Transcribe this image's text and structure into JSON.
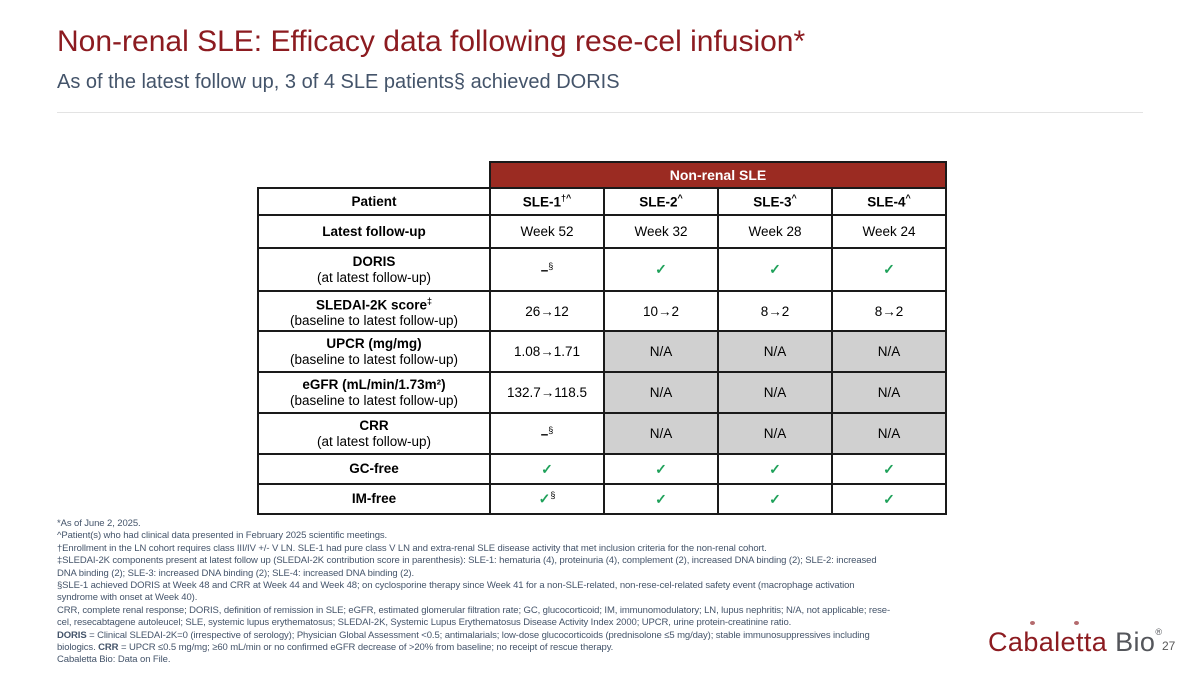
{
  "slide": {
    "title": "Non-renal SLE: Efficacy data following rese-cel infusion*",
    "subtitle": "As of the latest follow up, 3 of 4 SLE patients§ achieved DORIS",
    "page_number": "27",
    "logo": {
      "primary": "Cabaletta",
      "secondary": "Bio",
      "registered": "®"
    }
  },
  "colors": {
    "title_red": "#8C1B20",
    "band_red": "#9B2B22",
    "slate": "#44546A",
    "check_green": "#1FA15A",
    "na_gray": "#D0D0D0",
    "border_black": "#1A1A1A"
  },
  "table": {
    "band_label": "Non-renal SLE",
    "header": {
      "label": "Patient",
      "columns": [
        {
          "text": "SLE-1",
          "sup": "†^"
        },
        {
          "text": "SLE-2",
          "sup": "^"
        },
        {
          "text": "SLE-3",
          "sup": "^"
        },
        {
          "text": "SLE-4",
          "sup": "^"
        }
      ]
    },
    "rows": [
      {
        "title": "Latest follow-up",
        "sub": "",
        "cells": [
          {
            "type": "text",
            "text": "Week 52"
          },
          {
            "type": "text",
            "text": "Week 32"
          },
          {
            "type": "text",
            "text": "Week 28"
          },
          {
            "type": "text",
            "text": "Week 24"
          }
        ]
      },
      {
        "title": "DORIS",
        "sub": "(at latest follow-up)",
        "cells": [
          {
            "type": "dash",
            "sup": "§"
          },
          {
            "type": "check"
          },
          {
            "type": "check"
          },
          {
            "type": "check"
          }
        ]
      },
      {
        "title": "SLEDAI-2K score",
        "title_sup": "‡",
        "sub": "(baseline to latest follow-up)",
        "cells": [
          {
            "type": "text",
            "text": "26→12"
          },
          {
            "type": "text",
            "text": "10→2"
          },
          {
            "type": "text",
            "text": "8→2"
          },
          {
            "type": "text",
            "text": "8→2"
          }
        ]
      },
      {
        "title": "UPCR (mg/mg)",
        "sub": "(baseline to latest follow-up)",
        "cells": [
          {
            "type": "text",
            "text": "1.08→1.71"
          },
          {
            "type": "na"
          },
          {
            "type": "na"
          },
          {
            "type": "na"
          }
        ]
      },
      {
        "title": "eGFR (mL/min/1.73m²)",
        "sub": "(baseline to latest follow-up)",
        "cells": [
          {
            "type": "text",
            "text": "132.7→118.5"
          },
          {
            "type": "na"
          },
          {
            "type": "na"
          },
          {
            "type": "na"
          }
        ]
      },
      {
        "title": "CRR",
        "sub": "(at latest follow-up)",
        "cells": [
          {
            "type": "dash",
            "sup": "§"
          },
          {
            "type": "na"
          },
          {
            "type": "na"
          },
          {
            "type": "na"
          }
        ]
      },
      {
        "title": "GC-free",
        "sub": "",
        "cells": [
          {
            "type": "check"
          },
          {
            "type": "check"
          },
          {
            "type": "check"
          },
          {
            "type": "check"
          }
        ]
      },
      {
        "title": "IM-free",
        "sub": "",
        "cells": [
          {
            "type": "check",
            "sup": "§"
          },
          {
            "type": "check"
          },
          {
            "type": "check"
          },
          {
            "type": "check"
          }
        ]
      }
    ],
    "na_text": "N/A",
    "check_glyph": "✓",
    "dash_glyph": "–"
  },
  "footnotes": [
    {
      "parts": [
        {
          "text": "*As of June 2, 2025.",
          "bold": false
        }
      ]
    },
    {
      "parts": [
        {
          "text": "^Patient(s) who had clinical data presented in February 2025 scientific meetings.",
          "bold": false
        }
      ]
    },
    {
      "parts": [
        {
          "text": "†Enrollment in the LN cohort requires class III/IV +/- V LN. SLE-1 had pure class V LN and extra-renal SLE disease activity that met inclusion criteria for the non-renal cohort.",
          "bold": false
        }
      ]
    },
    {
      "parts": [
        {
          "text": "‡SLEDAI-2K components present at latest follow up (SLEDAI-2K contribution score in parenthesis): SLE-1: hematuria (4), proteinuria (4), complement (2), increased DNA binding (2); SLE-2: increased",
          "bold": false
        }
      ]
    },
    {
      "parts": [
        {
          "text": "DNA binding (2); SLE-3: increased DNA binding (2); SLE-4: increased DNA binding (2).",
          "bold": false
        }
      ]
    },
    {
      "parts": [
        {
          "text": "§SLE-1 achieved DORIS at Week 48 and CRR at Week 44 and Week 48; on cyclosporine therapy since Week 41 for a non-SLE-related, non-rese-cel-related safety event (macrophage activation",
          "bold": false
        }
      ]
    },
    {
      "parts": [
        {
          "text": "syndrome with onset at Week 40).",
          "bold": false
        }
      ]
    },
    {
      "parts": [
        {
          "text": "CRR, complete renal response; DORIS, definition of remission in SLE; eGFR, estimated glomerular filtration rate; GC, glucocorticoid; IM, immunomodulatory; LN, lupus nephritis; N/A, not applicable; rese-",
          "bold": false
        }
      ]
    },
    {
      "parts": [
        {
          "text": "cel, resecabtagene autoleucel; SLE, systemic lupus erythematosus; SLEDAI-2K, Systemic Lupus Erythematosus Disease Activity Index 2000; UPCR, urine protein-creatinine ratio.",
          "bold": false
        }
      ]
    },
    {
      "parts": [
        {
          "text": "DORIS",
          "bold": true
        },
        {
          "text": " = Clinical SLEDAI-2K=0 (irrespective of serology); Physician Global Assessment <0.5; antimalarials; low-dose glucocorticoids (prednisolone ≤5 mg/day); stable immunosuppressives including",
          "bold": false
        }
      ]
    },
    {
      "parts": [
        {
          "text": "biologics. ",
          "bold": false
        },
        {
          "text": "CRR",
          "bold": true
        },
        {
          "text": " = UPCR ≤0.5 mg/mg; ≥60 mL/min or no confirmed eGFR decrease of >20% from baseline; no receipt of rescue therapy.",
          "bold": false
        }
      ]
    },
    {
      "parts": [
        {
          "text": "Cabaletta Bio: Data on File.",
          "bold": false
        }
      ]
    }
  ]
}
